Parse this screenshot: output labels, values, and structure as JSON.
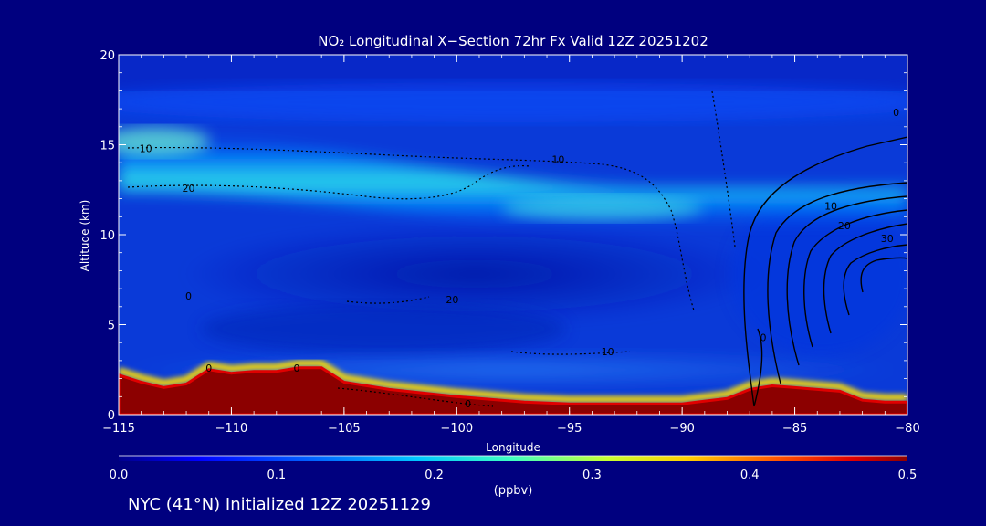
{
  "chart_data": {
    "type": "heatmap",
    "title": "NO₂ Longitudinal X−Section 72hr  Fx Valid 12Z 20251202",
    "xlabel": "Longitude",
    "ylabel": "Altitude (km)",
    "xlim": [
      -115,
      -80
    ],
    "ylim": [
      0,
      20
    ],
    "x_ticks": [
      "−115",
      "−110",
      "−105",
      "−100",
      "−95",
      "−90",
      "−85",
      "−80"
    ],
    "y_ticks": [
      "0",
      "5",
      "10",
      "15",
      "20"
    ],
    "grid": false,
    "colorbar": {
      "min": 0.0,
      "max": 0.5,
      "label": "(ppbv)",
      "ticks": [
        "0.0",
        "0.1",
        "0.2",
        "0.3",
        "0.4",
        "0.5"
      ]
    },
    "terrain": [
      [
        -115,
        2.2
      ],
      [
        -114,
        1.8
      ],
      [
        -113,
        1.5
      ],
      [
        -112,
        1.7
      ],
      [
        -111,
        2.5
      ],
      [
        -110,
        2.3
      ],
      [
        -109,
        2.4
      ],
      [
        -108,
        2.4
      ],
      [
        -107,
        2.6
      ],
      [
        -106,
        2.6
      ],
      [
        -105,
        1.8
      ],
      [
        -103,
        1.4
      ],
      [
        -100,
        1.0
      ],
      [
        -97,
        0.7
      ],
      [
        -95,
        0.6
      ],
      [
        -92,
        0.6
      ],
      [
        -90,
        0.6
      ],
      [
        -88,
        0.9
      ],
      [
        -87,
        1.4
      ],
      [
        -86,
        1.6
      ],
      [
        -85,
        1.5
      ],
      [
        -83,
        1.3
      ],
      [
        -82,
        0.8
      ],
      [
        -81,
        0.7
      ],
      [
        -80,
        0.7
      ]
    ],
    "contour_labels": [
      {
        "text": "10",
        "lon": -113.8,
        "alt": 14.8
      },
      {
        "text": "20",
        "lon": -111.9,
        "alt": 12.6
      },
      {
        "text": "10",
        "lon": -95.5,
        "alt": 14.2
      },
      {
        "text": "20",
        "lon": -100.2,
        "alt": 6.4
      },
      {
        "text": "10",
        "lon": -93.3,
        "alt": 3.5
      },
      {
        "text": "0",
        "lon": -111.9,
        "alt": 6.6
      },
      {
        "text": "0",
        "lon": -111.0,
        "alt": 2.6
      },
      {
        "text": "0",
        "lon": -107.1,
        "alt": 2.6
      },
      {
        "text": "0",
        "lon": -99.5,
        "alt": 0.6
      },
      {
        "text": "0",
        "lon": -86.4,
        "alt": 4.3
      },
      {
        "text": "10",
        "lon": -83.4,
        "alt": 11.6
      },
      {
        "text": "20",
        "lon": -82.8,
        "alt": 10.5
      },
      {
        "text": "30",
        "lon": -80.9,
        "alt": 9.8
      },
      {
        "text": "0",
        "lon": -80.5,
        "alt": 16.8
      }
    ]
  },
  "footer": "NYC (41°N) Initialized 12Z 20251129"
}
